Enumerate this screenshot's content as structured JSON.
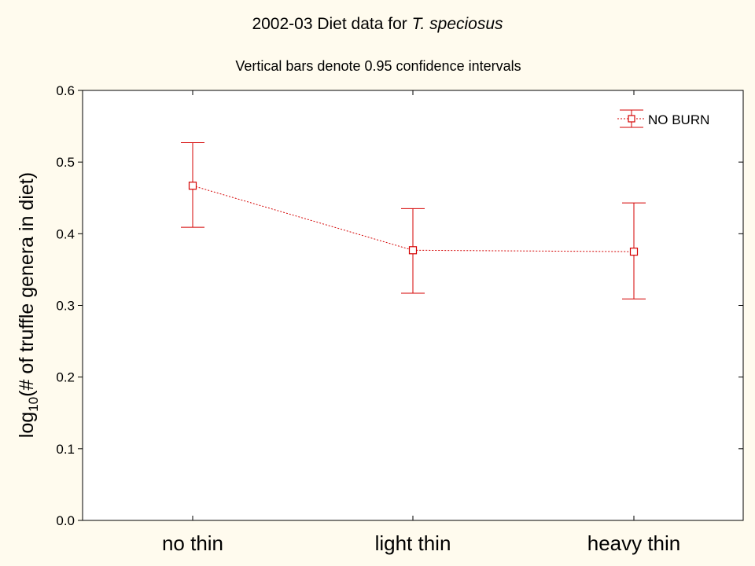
{
  "chart_data": {
    "type": "line",
    "title_prefix": "2002-03 Diet data for ",
    "title_italic": "T. speciosus",
    "subtitle": "Vertical bars denote 0.95 confidence intervals",
    "ylabel_prefix": "log",
    "ylabel_subscript": "10",
    "ylabel_suffix": "(# of truffle genera in diet)",
    "xlabel": "",
    "categories": [
      "no thin",
      "light thin",
      "heavy thin"
    ],
    "ylim": [
      0.0,
      0.6
    ],
    "yticks": [
      "0.0",
      "0.1",
      "0.2",
      "0.3",
      "0.4",
      "0.5",
      "0.6"
    ],
    "grid": false,
    "legend_position": "top-right",
    "series": [
      {
        "name": "NO BURN",
        "color": "#d40000",
        "marker": "square",
        "line_style": "dashed",
        "values": [
          0.467,
          0.377,
          0.375
        ],
        "ci_lower": [
          0.409,
          0.317,
          0.309
        ],
        "ci_upper": [
          0.527,
          0.435,
          0.443
        ]
      }
    ]
  },
  "colors": {
    "background": "#fffbee",
    "plot_background": "#ffffff",
    "axis": "#000000",
    "series": "#d40000"
  }
}
